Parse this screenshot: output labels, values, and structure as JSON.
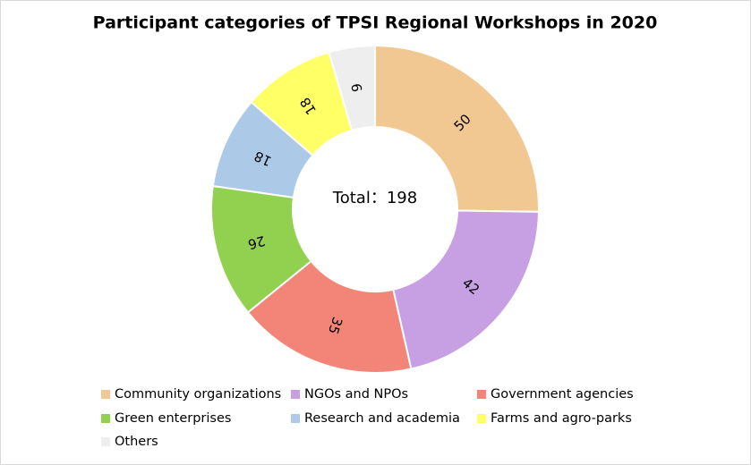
{
  "chart_data": {
    "type": "donut",
    "title": "Participant categories of TPSI Regional Workshops in 2020",
    "center_label": "Total：198",
    "categories": [
      "Community organizations",
      "NGOs and NPOs",
      "Government agencies",
      "Green enterprises",
      "Research and academia",
      "Farms and agro-parks",
      "Others"
    ],
    "values": [
      50,
      42,
      35,
      26,
      18,
      18,
      9
    ],
    "colors": [
      "#f2c892",
      "#c79fe3",
      "#f28578",
      "#92d050",
      "#acc9e8",
      "#ffff66",
      "#eeeeee"
    ],
    "legend": "bottom"
  }
}
